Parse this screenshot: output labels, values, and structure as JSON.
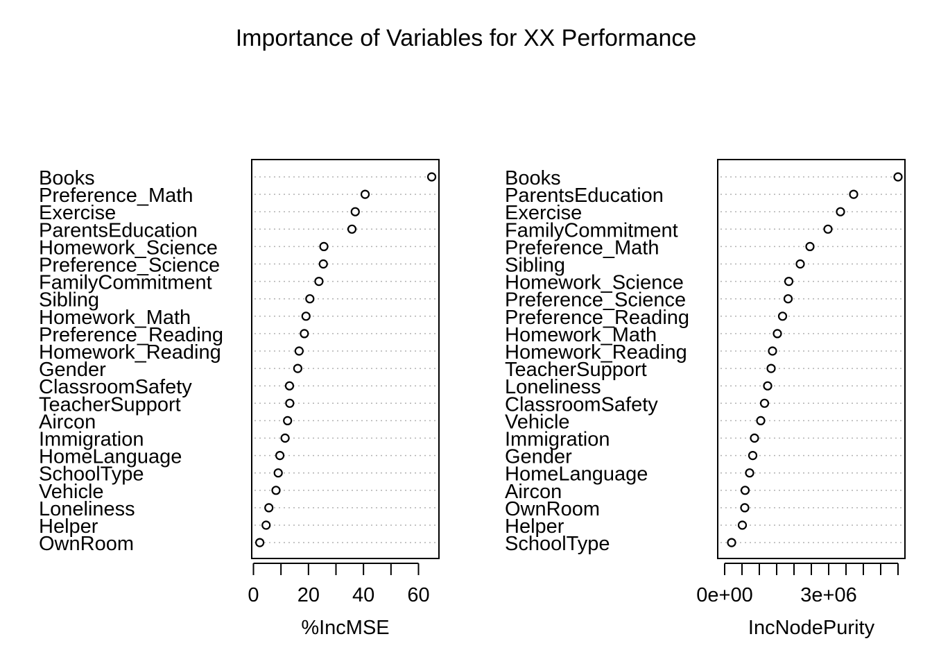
{
  "title": "Importance of Variables for XX Performance",
  "chart_data": [
    {
      "type": "scatter",
      "subtype": "dotchart",
      "xlabel": "%IncMSE",
      "xlim": [
        0,
        67
      ],
      "xticks": [
        0,
        10,
        20,
        30,
        40,
        50,
        60
      ],
      "xtick_labels": [
        "0",
        "",
        "20",
        "",
        "40",
        "",
        "60"
      ],
      "grid": "dotted-horizontal",
      "categories": [
        "Books",
        "Preference_Math",
        "Exercise",
        "ParentsEducation",
        "Homework_Science",
        "Preference_Science",
        "FamilyCommitment",
        "Sibling",
        "Homework_Math",
        "Preference_Reading",
        "Homework_Reading",
        "Gender",
        "ClassroomSafety",
        "TeacherSupport",
        "Aircon",
        "Immigration",
        "HomeLanguage",
        "SchoolType",
        "Vehicle",
        "Loneliness",
        "Helper",
        "OwnRoom"
      ],
      "values": [
        64.8,
        40.6,
        37.0,
        35.8,
        25.6,
        25.4,
        23.8,
        20.5,
        19.1,
        18.5,
        16.6,
        16.1,
        13.1,
        13.2,
        12.4,
        11.5,
        9.6,
        9.0,
        8.2,
        5.6,
        4.6,
        2.3
      ]
    },
    {
      "type": "scatter",
      "subtype": "dotchart",
      "xlabel": "IncNodePurity",
      "xlim": [
        -100000,
        5200000
      ],
      "xticks": [
        0,
        500000,
        1000000,
        1500000,
        2000000,
        2500000,
        3000000,
        3500000,
        4000000,
        4500000,
        5000000
      ],
      "xtick_labels": [
        "0e+00",
        "",
        "",
        "",
        "",
        "",
        "3e+06",
        "",
        "",
        "",
        ""
      ],
      "grid": "dotted-horizontal",
      "categories": [
        "Books",
        "ParentsEducation",
        "Exercise",
        "FamilyCommitment",
        "Preference_Math",
        "Sibling",
        "Homework_Science",
        "Preference_Science",
        "Preference_Reading",
        "Homework_Math",
        "Homework_Reading",
        "TeacherSupport",
        "Loneliness",
        "ClassroomSafety",
        "Vehicle",
        "Immigration",
        "Gender",
        "HomeLanguage",
        "Aircon",
        "OwnRoom",
        "Helper",
        "SchoolType"
      ],
      "values": [
        5000000,
        3720000,
        3340000,
        2980000,
        2460000,
        2180000,
        1850000,
        1830000,
        1670000,
        1520000,
        1380000,
        1340000,
        1240000,
        1150000,
        1040000,
        860000,
        810000,
        720000,
        590000,
        580000,
        510000,
        200000
      ]
    }
  ]
}
